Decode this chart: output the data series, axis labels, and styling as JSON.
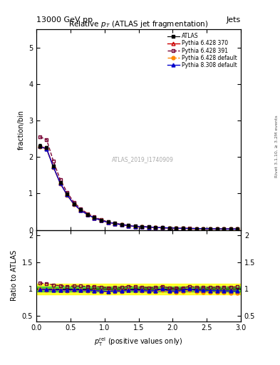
{
  "title": "Relative $p_{T}$ (ATLAS jet fragmentation)",
  "header_left": "13000 GeV pp",
  "header_right": "Jets",
  "ylabel_main": "fraction/bin",
  "ylabel_ratio": "Ratio to ATLAS",
  "watermark": "ATLAS_2019_I1740909",
  "right_label": "Rivet 3.1.10, ≥ 3.2M events",
  "x": [
    0.05,
    0.15,
    0.25,
    0.35,
    0.45,
    0.55,
    0.65,
    0.75,
    0.85,
    0.95,
    1.05,
    1.15,
    1.25,
    1.35,
    1.45,
    1.55,
    1.65,
    1.75,
    1.85,
    1.95,
    2.05,
    2.15,
    2.25,
    2.35,
    2.45,
    2.55,
    2.65,
    2.75,
    2.85,
    2.95
  ],
  "atlas_y": [
    2.3,
    2.25,
    1.75,
    1.3,
    0.98,
    0.72,
    0.55,
    0.43,
    0.34,
    0.27,
    0.22,
    0.18,
    0.15,
    0.12,
    0.1,
    0.09,
    0.08,
    0.07,
    0.06,
    0.055,
    0.05,
    0.045,
    0.04,
    0.038,
    0.036,
    0.034,
    0.032,
    0.03,
    0.028,
    0.026
  ],
  "atlas_err": [
    0.05,
    0.04,
    0.03,
    0.025,
    0.02,
    0.015,
    0.012,
    0.01,
    0.008,
    0.007,
    0.006,
    0.005,
    0.004,
    0.004,
    0.003,
    0.003,
    0.003,
    0.002,
    0.002,
    0.002,
    0.002,
    0.002,
    0.001,
    0.001,
    0.001,
    0.001,
    0.001,
    0.001,
    0.001,
    0.001
  ],
  "py6_370_y": [
    2.3,
    2.23,
    1.73,
    1.28,
    0.96,
    0.71,
    0.54,
    0.42,
    0.33,
    0.26,
    0.21,
    0.175,
    0.145,
    0.118,
    0.098,
    0.088,
    0.077,
    0.068,
    0.06,
    0.053,
    0.048,
    0.044,
    0.04,
    0.037,
    0.035,
    0.033,
    0.031,
    0.029,
    0.027,
    0.025
  ],
  "py6_391_y": [
    2.55,
    2.48,
    1.88,
    1.38,
    1.03,
    0.76,
    0.58,
    0.45,
    0.355,
    0.28,
    0.225,
    0.186,
    0.154,
    0.126,
    0.104,
    0.093,
    0.082,
    0.072,
    0.063,
    0.056,
    0.051,
    0.046,
    0.042,
    0.039,
    0.037,
    0.035,
    0.033,
    0.031,
    0.029,
    0.027
  ],
  "py6_def_y": [
    2.28,
    2.21,
    1.71,
    1.27,
    0.95,
    0.7,
    0.535,
    0.415,
    0.328,
    0.258,
    0.208,
    0.172,
    0.143,
    0.117,
    0.097,
    0.087,
    0.076,
    0.067,
    0.059,
    0.052,
    0.047,
    0.043,
    0.039,
    0.036,
    0.034,
    0.032,
    0.03,
    0.028,
    0.026,
    0.024
  ],
  "py8_def_y": [
    2.29,
    2.22,
    1.72,
    1.28,
    0.96,
    0.71,
    0.54,
    0.42,
    0.33,
    0.26,
    0.21,
    0.174,
    0.144,
    0.118,
    0.098,
    0.088,
    0.077,
    0.068,
    0.06,
    0.053,
    0.048,
    0.044,
    0.04,
    0.037,
    0.035,
    0.033,
    0.031,
    0.029,
    0.027,
    0.025
  ],
  "ylim_main": [
    0,
    5.5
  ],
  "ylim_ratio": [
    0.4,
    2.1
  ],
  "yticks_main": [
    0,
    1,
    2,
    3,
    4,
    5
  ],
  "yticks_ratio": [
    0.5,
    1.0,
    1.5,
    2.0
  ],
  "green_band": 0.05,
  "yellow_band": 0.1,
  "color_py6_370": "#cc0000",
  "color_py6_391": "#770033",
  "color_py6_def": "#ff8800",
  "color_py8_def": "#0000cc"
}
